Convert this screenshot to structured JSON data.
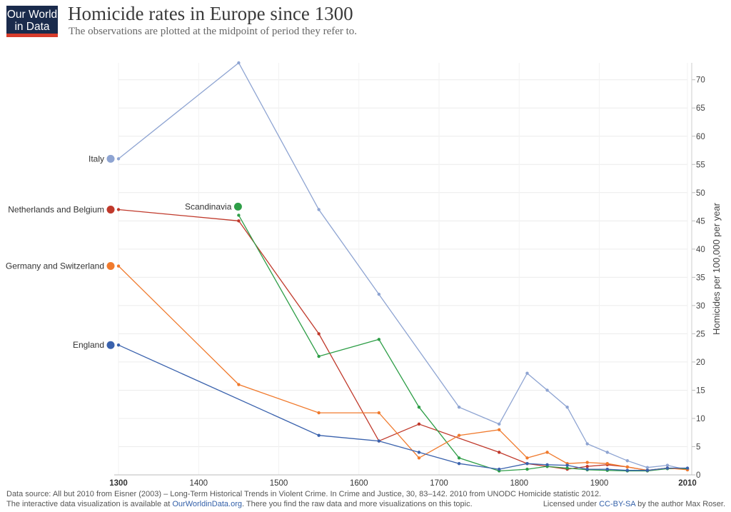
{
  "logo": {
    "line1": "Our World",
    "line2": "in Data"
  },
  "title": "Homicide rates in Europe since 1300",
  "subtitle": "The observations are plotted at the midpoint of period they refer to.",
  "footer": {
    "source": "Data source: All but 2010 from Eisner (2003) – Long-Term Historical Trends in Violent Crime. In Crime and Justice, 30, 83–142. 2010 from UNODC Homicide statistic 2012.",
    "interactive_prefix": "The interactive data visualization is available at ",
    "interactive_link": "OurWorldinData.org",
    "interactive_suffix": ". There you find the raw data and more visualizations on this topic.",
    "license_prefix": "Licensed under ",
    "license_link": "CC-BY-SA",
    "license_suffix": " by the author Max Roser."
  },
  "chart_data": {
    "type": "line",
    "title": "Homicide rates in Europe since 1300",
    "ylabel": "Homicides per 100,000 per year",
    "xlim": [
      1300,
      2010
    ],
    "ylim": [
      0,
      73
    ],
    "x_ticks": [
      "1300",
      "1400",
      "1500",
      "1600",
      "1700",
      "1800",
      "1900",
      "2010"
    ],
    "y_ticks": [
      "0",
      "5",
      "10",
      "15",
      "20",
      "25",
      "30",
      "35",
      "40",
      "45",
      "50",
      "55",
      "60",
      "65",
      "70"
    ],
    "grid": true,
    "legend_placement": "inline-left",
    "series": [
      {
        "name": "Italy",
        "color": "#8ea4d2",
        "x": [
          1300,
          1450,
          1550,
          1625,
          1725,
          1775,
          1810,
          1835,
          1860,
          1885,
          1910,
          1935,
          1960,
          1985,
          2010
        ],
        "y": [
          56,
          73,
          47,
          32,
          12,
          9,
          18,
          15,
          12,
          5.5,
          4,
          2.5,
          1.3,
          1.7,
          0.9
        ]
      },
      {
        "name": "Netherlands and Belgium",
        "color": "#c0392b",
        "x": [
          1300,
          1450,
          1550,
          1625,
          1675,
          1775,
          1810,
          1835,
          1860,
          1885,
          1910,
          1935,
          1960,
          1985,
          2010
        ],
        "y": [
          47,
          45,
          25,
          6,
          9,
          4,
          2,
          1.5,
          1,
          1.5,
          1.8,
          1.4,
          0.8,
          1.2,
          1.0
        ]
      },
      {
        "name": "Scandinavia",
        "color": "#2e9e47",
        "x": [
          1450,
          1550,
          1625,
          1675,
          1725,
          1775,
          1810,
          1835,
          1860,
          1885,
          1910,
          1935,
          1960,
          1985,
          2010
        ],
        "y": [
          46,
          21,
          24,
          12,
          3,
          0.7,
          1,
          1.5,
          1.2,
          0.9,
          0.8,
          0.7,
          0.7,
          1.1,
          1.1
        ]
      },
      {
        "name": "Germany and Switzerland",
        "color": "#f07a2d",
        "x": [
          1300,
          1450,
          1550,
          1625,
          1675,
          1725,
          1775,
          1810,
          1835,
          1860,
          1885,
          1910,
          1935,
          1960,
          1985,
          2010
        ],
        "y": [
          37,
          16,
          11,
          11,
          3,
          7,
          8,
          3,
          4,
          2,
          2.2,
          2,
          1.4,
          0.8,
          1.2,
          0.9
        ]
      },
      {
        "name": "England",
        "color": "#3a62ad",
        "x": [
          1300,
          1550,
          1625,
          1675,
          1725,
          1775,
          1810,
          1835,
          1860,
          1885,
          1910,
          1935,
          1960,
          1985,
          2010
        ],
        "y": [
          23,
          7,
          6,
          4,
          2,
          1,
          2,
          1.8,
          1.7,
          1,
          1,
          0.8,
          0.8,
          1.2,
          1.2
        ]
      }
    ]
  }
}
